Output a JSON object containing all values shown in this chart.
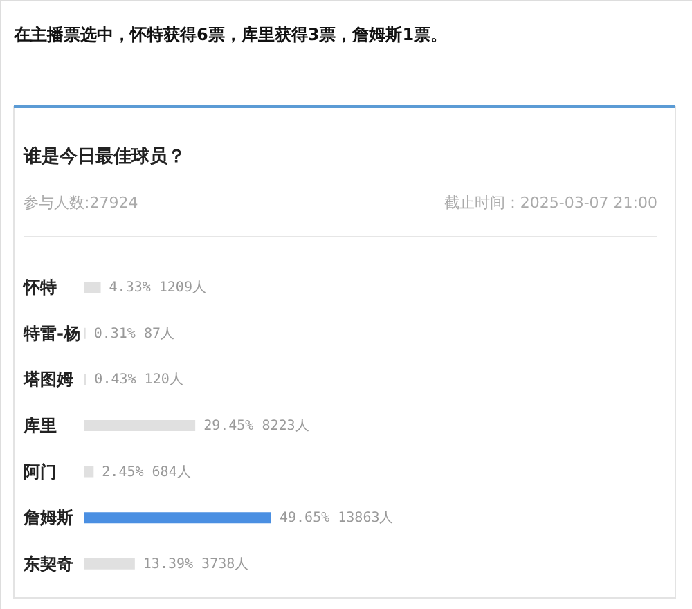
{
  "chart_data": {
    "type": "bar",
    "orientation": "horizontal",
    "title": "谁是今日最佳球员？",
    "annotations": [
      "在主播票选中，怀特获得6票，库里获得3票，詹姆斯1票。",
      "参与人数:27924",
      "截止时间：2025-03-07 21:00"
    ],
    "categories": [
      "怀特",
      "特雷-杨",
      "塔图姆",
      "库里",
      "阿门",
      "詹姆斯",
      "东契奇"
    ],
    "values": [
      4.33,
      0.31,
      0.43,
      29.45,
      2.45,
      49.65,
      13.39
    ],
    "colors": [
      "#e0e0e0",
      "#e0e0e0",
      "#e0e0e0",
      "#e0e0e0",
      "#e0e0e0",
      "#4a8fe2",
      "#e0e0e0"
    ],
    "value_labels": [
      "4.33% 1209人",
      "0.31% 87人",
      "0.43% 120人",
      "29.45% 8223人",
      "2.45% 684人",
      "49.65% 13863人",
      "13.39% 3738人"
    ]
  }
}
